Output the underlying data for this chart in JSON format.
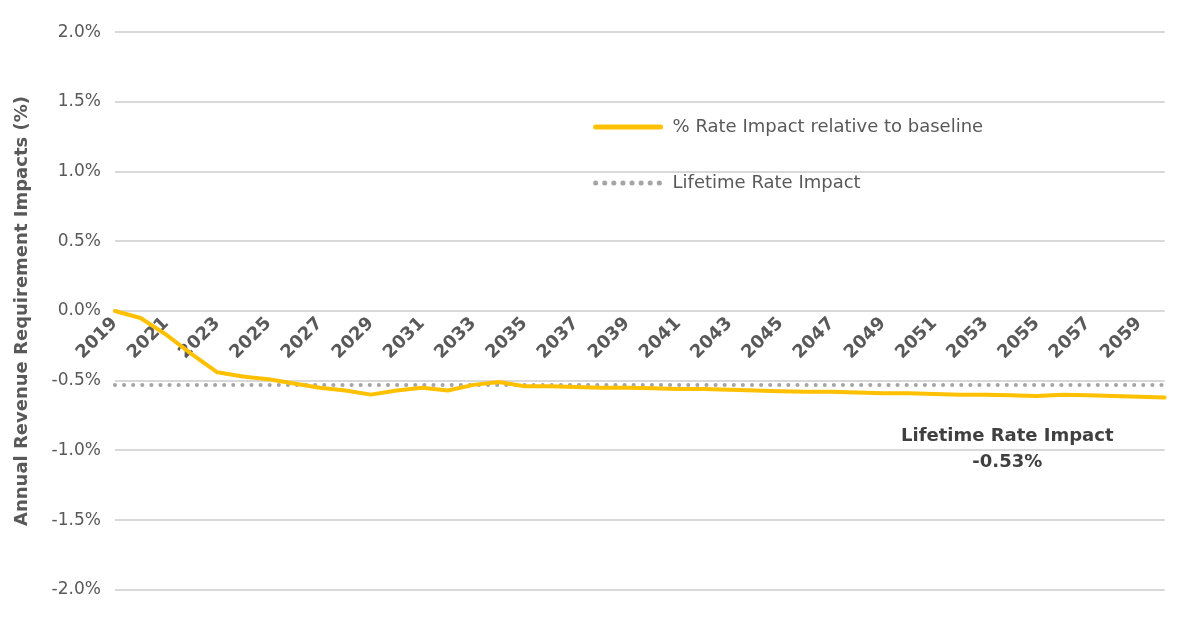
{
  "chart_data": {
    "type": "line",
    "ylabel": "Annual Revenue Requirement Impacts (%)",
    "categories": [
      "2019",
      null,
      "2021",
      null,
      "2023",
      null,
      "2025",
      null,
      "2027",
      null,
      "2029",
      null,
      "2031",
      null,
      "2033",
      null,
      "2035",
      null,
      "2037",
      null,
      "2039",
      null,
      "2041",
      null,
      "2043",
      null,
      "2045",
      null,
      "2047",
      null,
      "2049",
      null,
      "2051",
      null,
      "2053",
      null,
      "2055",
      null,
      "2057",
      null,
      "2059",
      null
    ],
    "series": [
      {
        "name": "% Rate Impact relative to baseline",
        "color": "#ffc000",
        "line_style": "solid",
        "values": [
          0,
          -0.05,
          -0.17,
          -0.31,
          -0.44,
          -0.47,
          -0.49,
          -0.52,
          -0.55,
          -0.57,
          -0.6,
          -0.57,
          -0.55,
          -0.57,
          -0.53,
          -0.51,
          -0.54,
          -0.54,
          -0.545,
          -0.55,
          -0.55,
          -0.555,
          -0.56,
          -0.56,
          -0.565,
          -0.57,
          -0.575,
          -0.58,
          -0.58,
          -0.585,
          -0.59,
          -0.59,
          -0.595,
          -0.6,
          -0.6,
          -0.605,
          -0.61,
          -0.6,
          -0.605,
          -0.61,
          -0.615,
          -0.62
        ]
      },
      {
        "name": "Lifetime Rate Impact",
        "color": "#a5a5a5",
        "line_style": "dotted",
        "values": [
          -0.53,
          -0.53,
          -0.53,
          -0.53,
          -0.53,
          -0.53,
          -0.53,
          -0.53,
          -0.53,
          -0.53,
          -0.53,
          -0.53,
          -0.53,
          -0.53,
          -0.53,
          -0.53,
          -0.53,
          -0.53,
          -0.53,
          -0.53,
          -0.53,
          -0.53,
          -0.53,
          -0.53,
          -0.53,
          -0.53,
          -0.53,
          -0.53,
          -0.53,
          -0.53,
          -0.53,
          -0.53,
          -0.53,
          -0.53,
          -0.53,
          -0.53,
          -0.53,
          -0.53,
          -0.53,
          -0.53,
          -0.53,
          -0.53
        ]
      }
    ],
    "ylim": [
      -2,
      2
    ],
    "yticks": [
      {
        "value": -2,
        "label": "-2.0%"
      },
      {
        "value": -1.5,
        "label": "-1.5%"
      },
      {
        "value": -1,
        "label": "-1.0%"
      },
      {
        "value": -0.5,
        "label": "-0.5%"
      },
      {
        "value": 0,
        "label": "0.0%"
      },
      {
        "value": 0.5,
        "label": "0.5%"
      },
      {
        "value": 1,
        "label": "1.0%"
      },
      {
        "value": 1.5,
        "label": "1.5%"
      },
      {
        "value": 2,
        "label": "2.0%"
      }
    ],
    "grid": "y",
    "legend": "top right",
    "marker": "none",
    "annotations": [
      "Lifetime Rate Impact\n-0.53%"
    ]
  }
}
